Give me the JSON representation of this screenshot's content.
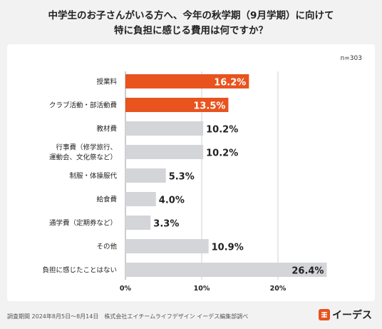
{
  "title_line1": "中学生のお子さんがいる方へ、今年の秋学期（9月学期）に向けて",
  "title_line2": "特に負担に感じる費用は何ですか？",
  "sample_size": "n=303",
  "footer": "調査期間 2024年8月5日〜8月14日　株式会社エイチームライフデザイン イーデス編集部調べ",
  "logo_text": "イーデス",
  "colors": {
    "highlight": "#e8531e",
    "default": "#d4d5d9",
    "grid": "#d0d0d0"
  },
  "chart_data": {
    "type": "bar",
    "orientation": "horizontal",
    "categories": [
      [
        "授業料"
      ],
      [
        "クラブ活動・部活動費"
      ],
      [
        "教材費"
      ],
      [
        "行事費（修学旅行、",
        "運動会、文化祭など）"
      ],
      [
        "制服・体操服代"
      ],
      [
        "給食費"
      ],
      [
        "通学費（定期券など）"
      ],
      [
        "その他"
      ],
      [
        "負担に感じたことはない"
      ]
    ],
    "values": [
      16.2,
      13.5,
      10.2,
      10.2,
      5.3,
      4.0,
      3.3,
      10.9,
      26.4
    ],
    "value_labels": [
      "16.2%",
      "13.5%",
      "10.2%",
      "10.2%",
      "5.3%",
      "4.0%",
      "3.3%",
      "10.9%",
      "26.4%"
    ],
    "highlighted": [
      0,
      1
    ],
    "xlim": [
      0,
      27
    ],
    "xticks": [
      0,
      10,
      20
    ],
    "xtick_labels": [
      "0%",
      "10%",
      "20%"
    ],
    "grid": true
  }
}
